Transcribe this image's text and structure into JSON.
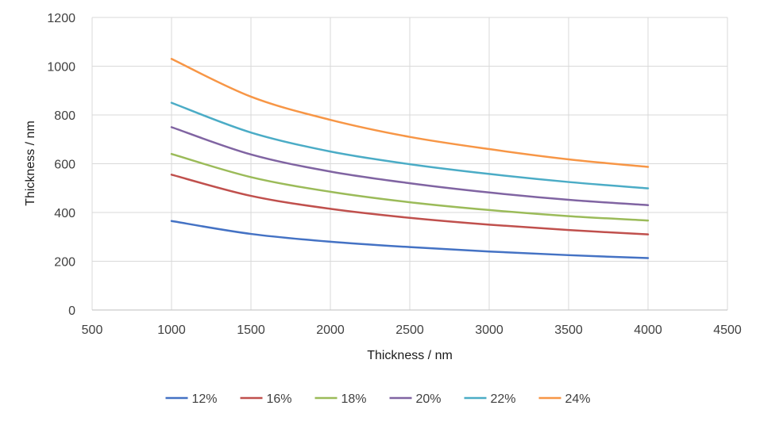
{
  "chart_data": {
    "type": "line",
    "title": "",
    "xlabel": "Thickness / nm",
    "ylabel": "Thickness / nm",
    "xlim": [
      500,
      4500
    ],
    "ylim": [
      0,
      1200
    ],
    "x_ticks": [
      "500",
      "1000",
      "1500",
      "2000",
      "2500",
      "3000",
      "3500",
      "4000",
      "4500"
    ],
    "y_ticks": [
      "0",
      "200",
      "400",
      "600",
      "800",
      "1000",
      "1200"
    ],
    "grid": true,
    "legend_position": "bottom",
    "x": [
      1000,
      1500,
      2000,
      2500,
      3000,
      3500,
      4000
    ],
    "series": [
      {
        "name": "12%",
        "color": "#4472c4",
        "values": [
          365,
          312,
          280,
          258,
          240,
          225,
          213
        ]
      },
      {
        "name": "16%",
        "color": "#c0504d",
        "values": [
          555,
          468,
          415,
          378,
          350,
          328,
          310
        ]
      },
      {
        "name": "18%",
        "color": "#9bbb59",
        "values": [
          640,
          545,
          485,
          442,
          410,
          385,
          367
        ]
      },
      {
        "name": "20%",
        "color": "#8064a2",
        "values": [
          750,
          638,
          568,
          520,
          482,
          452,
          430
        ]
      },
      {
        "name": "22%",
        "color": "#4bacc6",
        "values": [
          850,
          728,
          650,
          598,
          558,
          525,
          499
        ]
      },
      {
        "name": "24%",
        "color": "#f79646",
        "values": [
          1030,
          875,
          780,
          710,
          660,
          618,
          587
        ]
      }
    ]
  }
}
